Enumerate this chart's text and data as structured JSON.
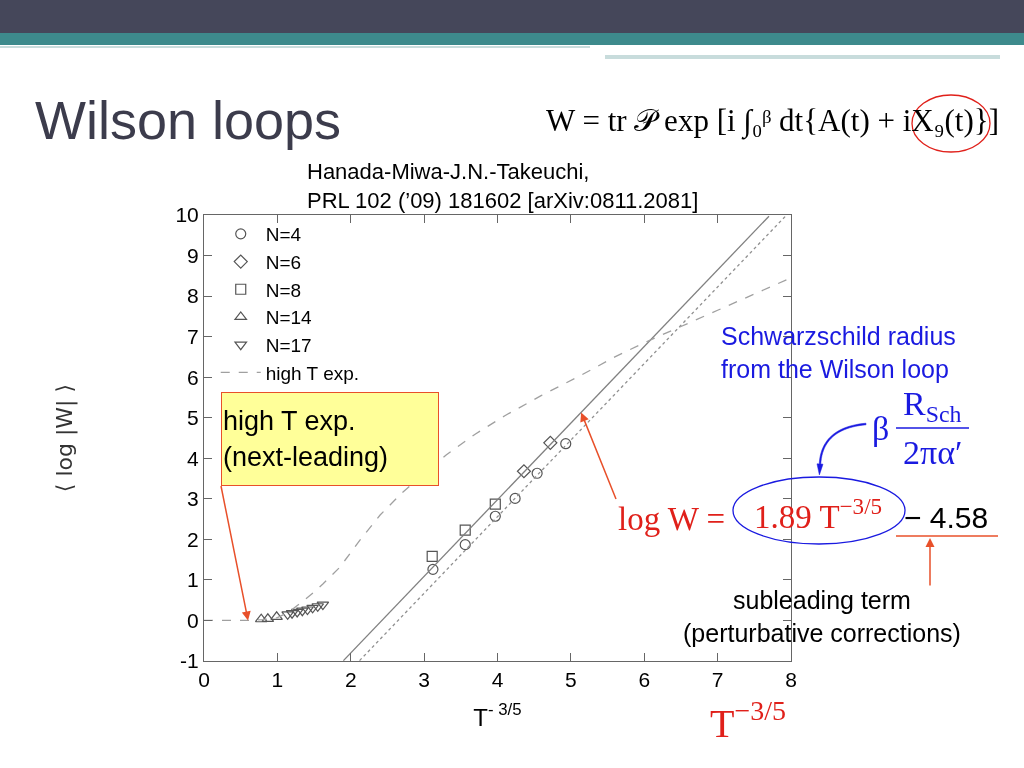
{
  "chart_data": {
    "type": "scatter",
    "title": "Wilson loops",
    "xlabel": "T$^{- 3/5}$",
    "ylabel": "⟨ log |W| ⟩",
    "xlim": [
      0,
      8
    ],
    "ylim": [
      -1,
      10
    ],
    "xticks": [
      0,
      1,
      2,
      3,
      4,
      5,
      6,
      7,
      8
    ],
    "yticks": [
      -1,
      0,
      1,
      2,
      3,
      4,
      5,
      6,
      7,
      8,
      9,
      10
    ],
    "legend": "top left",
    "series": [
      {
        "name": "N=4",
        "marker": "circle",
        "color": "#555555",
        "x": [
          3.12,
          3.56,
          3.97,
          4.24,
          4.54,
          4.93
        ],
        "values": [
          1.26,
          1.87,
          2.57,
          3.01,
          3.63,
          4.36
        ]
      },
      {
        "name": "N=6",
        "marker": "diamond",
        "color": "#555555",
        "x": [
          4.36,
          4.72
        ],
        "values": [
          3.68,
          4.38
        ]
      },
      {
        "name": "N=8",
        "marker": "square",
        "color": "#555555",
        "x": [
          3.11,
          3.56,
          3.97
        ],
        "values": [
          1.58,
          2.23,
          2.87
        ]
      },
      {
        "name": "N=14",
        "marker": "triangle",
        "color": "#555555",
        "x": [
          0.78,
          0.87,
          0.99
        ],
        "values": [
          0.03,
          0.04,
          0.09
        ]
      },
      {
        "name": "N=17",
        "marker": "triangle-down",
        "color": "#555555",
        "x": [
          1.14,
          1.2,
          1.27,
          1.34,
          1.41,
          1.48,
          1.55,
          1.62
        ],
        "values": [
          0.15,
          0.18,
          0.21,
          0.24,
          0.27,
          0.31,
          0.35,
          0.39
        ]
      },
      {
        "type": "line",
        "marker": "none",
        "line_style": "solid",
        "color": "#808080",
        "x": [
          1.9,
          7.7
        ],
        "values": [
          -0.99,
          9.97
        ]
      },
      {
        "type": "line",
        "marker": "none",
        "line_style": "dotted",
        "color": "#909090",
        "x": [
          2.12,
          7.94
        ],
        "values": [
          -0.99,
          10.0
        ]
      },
      {
        "name": "high T exp.",
        "type": "line",
        "marker": "none",
        "line_style": "dashed",
        "color": "#a0a0a0",
        "x": [
          0,
          0.3,
          0.6,
          0.8,
          1.0,
          1.15,
          1.31,
          1.5,
          1.62,
          1.85,
          2.12,
          2.4,
          2.7,
          3.3,
          3.7,
          4.1,
          4.6,
          5.12,
          5.6,
          6.0,
          6.5,
          7.0,
          7.5,
          8.0
        ],
        "values": [
          0,
          0,
          0,
          0.02,
          0.07,
          0.2,
          0.42,
          0.7,
          0.9,
          1.31,
          1.97,
          2.6,
          3.15,
          4.08,
          4.6,
          5.05,
          5.55,
          6.03,
          6.5,
          6.85,
          7.25,
          7.65,
          8.05,
          8.45
        ]
      }
    ],
    "annotations": [
      "Hanada-Miwa-J.N.-Takeuchi,\nPRL 102 (’09) 181602 [arXiv:0811.2081]",
      "W = tr 𝒫 exp [i ∫₀ᵝ dt{A(t) + iX₉(t)}]",
      {
        "text": "high T exp.\n(next-leading)",
        "x": 0.6,
        "y": 0
      },
      "Schwarzschild radius\nfrom the Wilson loop",
      "β",
      "R$_{Sch}$",
      "2πα′",
      {
        "text": "log W =",
        "x": 5.14,
        "y": 5.13
      },
      "1.89 T$^{−3/5}$",
      "− 4.58",
      "subleading term\n(perturbative corrections)",
      "T$^{−3/5}$"
    ]
  }
}
